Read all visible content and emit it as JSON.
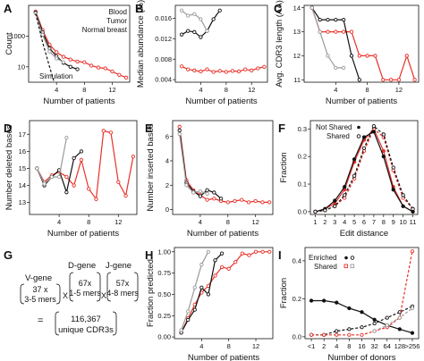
{
  "colors": {
    "blood": "#e8312a",
    "tumor": "#111111",
    "normal": "#9a9a9a",
    "enriched": "#111111",
    "shared": "#e8312a"
  },
  "panel_g": {
    "label": "G",
    "vgene": "V-gene",
    "vcount": "37 x",
    "vmers": "3-5 mers",
    "dgene": "D-gene",
    "dcount": "67x",
    "dmers": "1-5 mers",
    "jgene": "J-gene",
    "jcount": "57x",
    "jmers": "4-8 mers",
    "times": "X",
    "equals": "=",
    "total": "116,367",
    "unique": "unique CDR3s"
  },
  "chart_data": [
    {
      "id": "A",
      "label": "A",
      "type": "line",
      "xlabel": "Number of patients",
      "ylabel": "Count",
      "yscale": "log",
      "xlim": [
        0,
        14.5
      ],
      "ylim": [
        1,
        100000
      ],
      "xticks": [
        4,
        8,
        12
      ],
      "yticks": [
        10,
        1000
      ],
      "legend": [
        "Blood",
        "Tumor",
        "Normal breast"
      ],
      "annotation": "Simulation",
      "series": [
        {
          "name": "Blood",
          "color": "#e8312a",
          "x": [
            1,
            2,
            3,
            4,
            5,
            6,
            7,
            8,
            9,
            10,
            11,
            12,
            13,
            14
          ],
          "y": [
            40000,
            2500,
            280,
            90,
            45,
            30,
            22,
            20,
            12,
            9,
            8,
            5,
            3,
            2
          ]
        },
        {
          "name": "Tumor",
          "color": "#111111",
          "x": [
            1,
            2,
            3,
            4,
            5,
            6,
            7
          ],
          "y": [
            35000,
            1800,
            160,
            50,
            18,
            10,
            7
          ]
        },
        {
          "name": "Normal breast",
          "color": "#9a9a9a",
          "x": [
            1,
            2,
            3,
            4,
            5
          ],
          "y": [
            30000,
            1200,
            100,
            35,
            20
          ]
        },
        {
          "name": "",
          "color": "#111111",
          "dashed": true,
          "x": [
            1,
            2,
            3,
            4
          ],
          "y": [
            30000,
            400,
            10,
            0.3
          ]
        }
      ]
    },
    {
      "id": "B",
      "label": "B",
      "type": "line",
      "xlabel": "Number of patients",
      "ylabel": "Median abundance (%)",
      "xlim": [
        0,
        14.5
      ],
      "ylim": [
        0.0035,
        0.0185
      ],
      "xticks": [
        4,
        8,
        12
      ],
      "yticks": [
        0.004,
        0.008,
        0.012,
        0.016
      ],
      "yticklabels": [
        "0.004",
        "0.008",
        "0.012",
        "0.016"
      ],
      "series": [
        {
          "name": "Blood",
          "color": "#e8312a",
          "x": [
            1,
            2,
            3,
            4,
            5,
            6,
            7,
            8,
            9,
            10,
            11,
            12,
            13,
            14
          ],
          "y": [
            0.0066,
            0.006,
            0.0058,
            0.0056,
            0.006,
            0.0055,
            0.0057,
            0.0055,
            0.0057,
            0.0056,
            0.006,
            0.0058,
            0.0062,
            0.0065
          ]
        },
        {
          "name": "Tumor",
          "color": "#111111",
          "x": [
            1,
            2,
            3,
            4,
            5,
            6,
            7
          ],
          "y": [
            0.0128,
            0.0135,
            0.0133,
            0.0123,
            0.0135,
            0.0158,
            0.0175
          ]
        },
        {
          "name": "Normal breast",
          "color": "#9a9a9a",
          "x": [
            1,
            2,
            3,
            4,
            5
          ],
          "y": [
            0.0175,
            0.0165,
            0.0168,
            0.0158,
            0.0135
          ]
        }
      ]
    },
    {
      "id": "C",
      "label": "C",
      "type": "line",
      "xlabel": "Number of patients",
      "ylabel": "Avg. CDR3 length (AA)",
      "xlim": [
        0,
        14.5
      ],
      "ylim": [
        10.9,
        14.1
      ],
      "xticks": [
        4,
        8,
        12
      ],
      "yticks": [
        11,
        12,
        13,
        14
      ],
      "series": [
        {
          "name": "Blood",
          "color": "#e8312a",
          "x": [
            1,
            2,
            3,
            4,
            5,
            6,
            7,
            8,
            9,
            10,
            11,
            12,
            13,
            14
          ],
          "y": [
            14,
            13,
            13,
            13,
            13,
            13,
            12,
            12,
            12,
            11,
            11,
            11,
            12,
            11
          ]
        },
        {
          "name": "Tumor",
          "color": "#111111",
          "x": [
            1,
            2,
            3,
            4,
            5,
            6,
            7
          ],
          "y": [
            14,
            13.5,
            13.5,
            13.5,
            13.5,
            12,
            11
          ]
        },
        {
          "name": "Normal breast",
          "color": "#9a9a9a",
          "x": [
            1,
            2,
            3,
            4,
            5
          ],
          "y": [
            14,
            13,
            12,
            11.5,
            11.5
          ]
        }
      ]
    },
    {
      "id": "D",
      "label": "D",
      "type": "line",
      "xlabel": "Number of patients",
      "ylabel": "Number deleted bases",
      "xlim": [
        0,
        14.5
      ],
      "ylim": [
        12.3,
        17.8
      ],
      "xticks": [
        4,
        8,
        12
      ],
      "yticks": [
        13,
        14,
        15,
        16,
        17
      ],
      "series": [
        {
          "name": "Blood",
          "color": "#e8312a",
          "x": [
            1,
            2,
            3,
            4,
            5,
            6,
            7,
            8,
            9,
            10,
            11,
            12,
            13,
            14
          ],
          "y": [
            15,
            14.2,
            14.6,
            14.8,
            14.5,
            14,
            15.5,
            13.8,
            13.2,
            17.2,
            17.1,
            14.2,
            13.4,
            15.7
          ]
        },
        {
          "name": "Tumor",
          "color": "#111111",
          "x": [
            1,
            2,
            3,
            4,
            5,
            6,
            7
          ],
          "y": [
            15,
            14,
            14.5,
            14.9,
            13.6,
            15.6,
            16
          ]
        },
        {
          "name": "Normal breast",
          "color": "#9a9a9a",
          "x": [
            1,
            2,
            3,
            4,
            5
          ],
          "y": [
            15,
            14.1,
            14.5,
            14.5,
            16.8
          ]
        }
      ]
    },
    {
      "id": "E",
      "label": "E",
      "type": "line",
      "xlabel": "Number of patients",
      "ylabel": "Number inserted bases",
      "xlim": [
        0,
        14.5
      ],
      "ylim": [
        -0.4,
        7.3
      ],
      "xticks": [
        4,
        8,
        12
      ],
      "yticks": [
        0,
        2,
        4,
        6
      ],
      "series": [
        {
          "name": "Blood",
          "color": "#e8312a",
          "x": [
            1,
            2,
            3,
            4,
            5,
            6,
            7,
            8,
            9,
            10,
            11,
            12,
            13,
            14
          ],
          "y": [
            6.8,
            2.4,
            1.6,
            1.2,
            0.8,
            0.9,
            0.7,
            0.6,
            0.7,
            0.8,
            0.6,
            0.7,
            0.6,
            0.6
          ]
        },
        {
          "name": "Tumor",
          "color": "#111111",
          "x": [
            1,
            2,
            3,
            4,
            5,
            6,
            7
          ],
          "y": [
            6.5,
            2.2,
            1.5,
            1.1,
            1.6,
            1.4,
            0.9
          ]
        },
        {
          "name": "Normal breast",
          "color": "#9a9a9a",
          "x": [
            1,
            2,
            3,
            4,
            5
          ],
          "y": [
            6.2,
            2,
            1.4,
            1.5,
            1.3
          ]
        }
      ]
    },
    {
      "id": "F",
      "label": "F",
      "type": "line",
      "xlabel": "Edit distance",
      "ylabel": "Fraction",
      "xlim": [
        0.5,
        11.5
      ],
      "ylim": [
        -0.01,
        0.33
      ],
      "xticks": [
        1,
        2,
        3,
        4,
        5,
        6,
        7,
        8,
        9,
        10,
        11
      ],
      "yticks": [
        0,
        0.1,
        0.2,
        0.3
      ],
      "yticklabels": [
        "0.0",
        "0.1",
        "0.2",
        "0.3"
      ],
      "legend": [
        "Not Shared",
        "Shared"
      ],
      "series": [
        {
          "name": "Blood",
          "color": "#e8312a",
          "x": [
            1,
            2,
            3,
            4,
            5,
            6,
            7,
            8,
            9,
            10,
            11
          ],
          "y": [
            0,
            0.01,
            0.03,
            0.08,
            0.18,
            0.26,
            0.3,
            0.22,
            0.09,
            0.02,
            0
          ]
        },
        {
          "name": "Blood",
          "color": "#e8312a",
          "dashed": true,
          "x": [
            1,
            2,
            3,
            4,
            5,
            6,
            7,
            8,
            9,
            10,
            11
          ],
          "y": [
            0,
            0.005,
            0.02,
            0.05,
            0.12,
            0.22,
            0.3,
            0.27,
            0.15,
            0.05,
            0.01
          ]
        },
        {
          "name": "Tumor",
          "color": "#111111",
          "x": [
            1,
            2,
            3,
            4,
            5,
            6,
            7,
            8,
            9,
            10,
            11
          ],
          "y": [
            0,
            0.01,
            0.04,
            0.09,
            0.19,
            0.27,
            0.29,
            0.2,
            0.08,
            0.02,
            0
          ]
        },
        {
          "name": "Tumor",
          "color": "#111111",
          "dashed": true,
          "x": [
            1,
            2,
            3,
            4,
            5,
            6,
            7,
            8,
            9,
            10,
            11
          ],
          "y": [
            0,
            0.005,
            0.02,
            0.06,
            0.13,
            0.23,
            0.31,
            0.28,
            0.16,
            0.06,
            0.01
          ]
        }
      ]
    },
    {
      "id": "H",
      "label": "H",
      "type": "line",
      "xlabel": "Number of patients",
      "ylabel": "Fraction predicted",
      "xlim": [
        0,
        14.5
      ],
      "ylim": [
        -0.02,
        1.05
      ],
      "xticks": [
        4,
        8,
        12
      ],
      "yticks": [
        0,
        0.25,
        0.5,
        0.75,
        1
      ],
      "yticklabels": [
        "0.00",
        "0.25",
        "0.50",
        "0.75",
        "1.00"
      ],
      "series": [
        {
          "name": "Blood",
          "color": "#e8312a",
          "x": [
            1,
            2,
            3,
            4,
            5,
            6,
            7,
            8,
            9,
            10,
            11,
            12,
            13,
            14
          ],
          "y": [
            0.05,
            0.22,
            0.38,
            0.52,
            0.6,
            0.72,
            0.82,
            0.8,
            0.88,
            0.98,
            0.96,
            1,
            1,
            1
          ]
        },
        {
          "name": "Tumor",
          "color": "#111111",
          "x": [
            1,
            2,
            3,
            4,
            5,
            6,
            7
          ],
          "y": [
            0.05,
            0.2,
            0.32,
            0.58,
            0.5,
            0.9,
            0.98
          ]
        },
        {
          "name": "Normal breast",
          "color": "#9a9a9a",
          "x": [
            1,
            2,
            3,
            4,
            5
          ],
          "y": [
            0.08,
            0.3,
            0.58,
            0.85,
            1
          ]
        }
      ]
    },
    {
      "id": "I",
      "label": "I",
      "type": "line",
      "xlabel": "Number of donors",
      "ylabel": "Fraction",
      "xlim": [
        0.5,
        9.5
      ],
      "ylim": [
        -0.01,
        0.47
      ],
      "xticks": [
        1,
        2,
        3,
        4,
        5,
        6,
        7,
        8,
        9
      ],
      "xticklabels": [
        "<1",
        "2",
        "4",
        "8",
        "16",
        "32",
        "64",
        "128",
        ">256"
      ],
      "yticks": [
        0,
        0.2,
        0.4
      ],
      "yticklabels": [
        "0.0",
        "0.2",
        "0.4"
      ],
      "legend": [
        "Enriched",
        "Shared"
      ],
      "series": [
        {
          "name": "Enriched",
          "color": "#111111",
          "x": [
            1,
            2,
            3,
            4,
            5,
            6,
            7,
            8,
            9
          ],
          "y": [
            0.19,
            0.19,
            0.18,
            0.15,
            0.13,
            0.09,
            0.06,
            0.04,
            0.02
          ]
        },
        {
          "name": "Enriched",
          "color": "#111111",
          "dashed": true,
          "x": [
            1,
            2,
            3,
            4,
            5,
            6,
            7,
            8,
            9
          ],
          "y": [
            0.01,
            0.01,
            0.03,
            0.04,
            0.05,
            0.07,
            0.1,
            0.13,
            0.16
          ]
        },
        {
          "name": "Shared",
          "color": "#e8312a",
          "dashed": true,
          "x": [
            1,
            2,
            3,
            4,
            5,
            6,
            7,
            8,
            9
          ],
          "y": [
            0.01,
            0.01,
            0.01,
            0.01,
            0.01,
            0.03,
            0.05,
            0.1,
            0.45
          ]
        },
        {
          "name": "Shared",
          "color": "#9a9a9a",
          "dashed": true,
          "x": [
            6,
            7,
            8,
            9
          ],
          "y": [
            0.03,
            0.06,
            0.1,
            0.15
          ]
        }
      ]
    }
  ]
}
